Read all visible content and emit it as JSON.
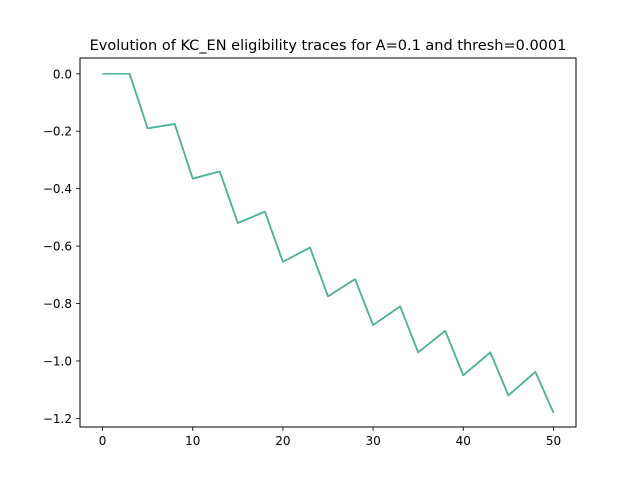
{
  "chart_data": {
    "type": "line",
    "title": "Evolution of KC_EN eligibility traces for A=0.1 and thresh=0.0001",
    "xlabel": "",
    "ylabel": "",
    "xlim": [
      -2.5,
      52.5
    ],
    "ylim": [
      -1.23,
      0.055
    ],
    "x_ticks": [
      0,
      10,
      20,
      30,
      40,
      50
    ],
    "x_tick_labels": [
      "0",
      "10",
      "20",
      "30",
      "40",
      "50"
    ],
    "y_ticks": [
      0.0,
      -0.2,
      -0.4,
      -0.6,
      -0.8,
      -1.0,
      -1.2
    ],
    "y_tick_labels": [
      "0.0",
      "−0.2",
      "−0.4",
      "−0.6",
      "−0.8",
      "−1.0",
      "−1.2"
    ],
    "grid": false,
    "legend": "none",
    "series": [
      {
        "color": "#1f77b4",
        "x": [
          0,
          3,
          5,
          8,
          10,
          13,
          15,
          18,
          20,
          23,
          25,
          28,
          30,
          33,
          35,
          38,
          40,
          43,
          45,
          48,
          50
        ],
        "y": [
          0.0,
          0.0,
          -0.19,
          -0.175,
          -0.365,
          -0.34,
          -0.52,
          -0.48,
          -0.655,
          -0.605,
          -0.775,
          -0.715,
          -0.875,
          -0.81,
          -0.97,
          -0.895,
          -1.05,
          -0.97,
          -1.12,
          -1.038,
          -1.18
        ]
      },
      {
        "color": "#17becf",
        "x": [
          0,
          3,
          5,
          8,
          10,
          13,
          15,
          18,
          20,
          23,
          25,
          28,
          30,
          33,
          35,
          38,
          40,
          43,
          45,
          48,
          50
        ],
        "y": [
          0.0,
          0.0,
          -0.19,
          -0.175,
          -0.365,
          -0.34,
          -0.52,
          -0.48,
          -0.655,
          -0.605,
          -0.775,
          -0.715,
          -0.875,
          -0.81,
          -0.97,
          -0.895,
          -1.05,
          -0.97,
          -1.12,
          -1.038,
          -1.18
        ]
      },
      {
        "color": "#bcbd22",
        "x": [
          0,
          3,
          5,
          8,
          10,
          13,
          15,
          18,
          20,
          23,
          25,
          28,
          30,
          33,
          35,
          38,
          40,
          43,
          45,
          48,
          50
        ],
        "y": [
          0.0,
          0.0,
          -0.19,
          -0.175,
          -0.365,
          -0.34,
          -0.52,
          -0.48,
          -0.655,
          -0.605,
          -0.775,
          -0.715,
          -0.875,
          -0.81,
          -0.97,
          -0.895,
          -1.05,
          -0.97,
          -1.12,
          -1.038,
          -1.18
        ]
      },
      {
        "color": "#2ca02c",
        "x": [
          0,
          3,
          5,
          8,
          10,
          13,
          15,
          18,
          20,
          23,
          25,
          28,
          30,
          33,
          35,
          38,
          40,
          43,
          45,
          48,
          50
        ],
        "y": [
          0.0,
          0.0,
          -0.19,
          -0.175,
          -0.365,
          -0.34,
          -0.52,
          -0.48,
          -0.655,
          -0.605,
          -0.775,
          -0.715,
          -0.875,
          -0.81,
          -0.97,
          -0.895,
          -1.05,
          -0.97,
          -1.12,
          -1.038,
          -1.18
        ]
      },
      {
        "color": "#4db3a8",
        "x": [
          0,
          3,
          5,
          8,
          10,
          13,
          15,
          18,
          20,
          23,
          25,
          28,
          30,
          33,
          35,
          38,
          40,
          43,
          45,
          48,
          50
        ],
        "y": [
          0.0,
          0.0,
          -0.19,
          -0.175,
          -0.365,
          -0.34,
          -0.52,
          -0.48,
          -0.655,
          -0.605,
          -0.775,
          -0.715,
          -0.875,
          -0.81,
          -0.97,
          -0.895,
          -1.05,
          -0.97,
          -1.12,
          -1.038,
          -1.18
        ]
      }
    ]
  }
}
